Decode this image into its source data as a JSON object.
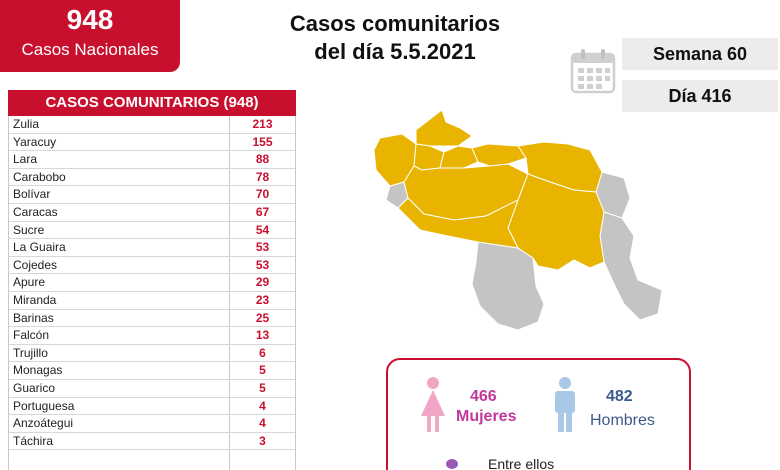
{
  "national": {
    "number": "948",
    "label": "Casos Nacionales"
  },
  "title": {
    "line1": "Casos comunitarios",
    "line2": "del día 5.5.2021"
  },
  "week": "Semana 60",
  "day": "Día 416",
  "table": {
    "header": "CASOS COMUNITARIOS (948)",
    "rows": [
      {
        "name": "Zulia",
        "value": "213"
      },
      {
        "name": "Yaracuy",
        "value": "155"
      },
      {
        "name": "Lara",
        "value": "88"
      },
      {
        "name": "Carabobo",
        "value": "78"
      },
      {
        "name": "Bolívar",
        "value": "70"
      },
      {
        "name": "Caracas",
        "value": "67"
      },
      {
        "name": "Sucre",
        "value": "54"
      },
      {
        "name": "La Guaira",
        "value": "53"
      },
      {
        "name": "Cojedes",
        "value": "53"
      },
      {
        "name": "Apure",
        "value": "29"
      },
      {
        "name": "Miranda",
        "value": "23"
      },
      {
        "name": "Barinas",
        "value": "25"
      },
      {
        "name": "Falcón",
        "value": "13"
      },
      {
        "name": "Trujillo",
        "value": "6"
      },
      {
        "name": "Monagas",
        "value": "5"
      },
      {
        "name": "Guarico",
        "value": "5"
      },
      {
        "name": "Portuguesa",
        "value": "4"
      },
      {
        "name": "Anzoátegui",
        "value": "4"
      },
      {
        "name": "Táchira",
        "value": "3"
      }
    ]
  },
  "gender": {
    "female_count": "466",
    "female_label": "Mujeres",
    "male_count": "482",
    "male_label": "Hombres"
  },
  "among_text": "Entre ellos",
  "colors": {
    "brand_red": "#c8102e",
    "map_affected": "#e8b400",
    "map_unaffected": "#c4c4c4",
    "female": "#c0399b",
    "male": "#3b5b8c"
  },
  "icons": [
    "calendar-icon",
    "female-icon",
    "male-icon",
    "bullet-icon"
  ]
}
